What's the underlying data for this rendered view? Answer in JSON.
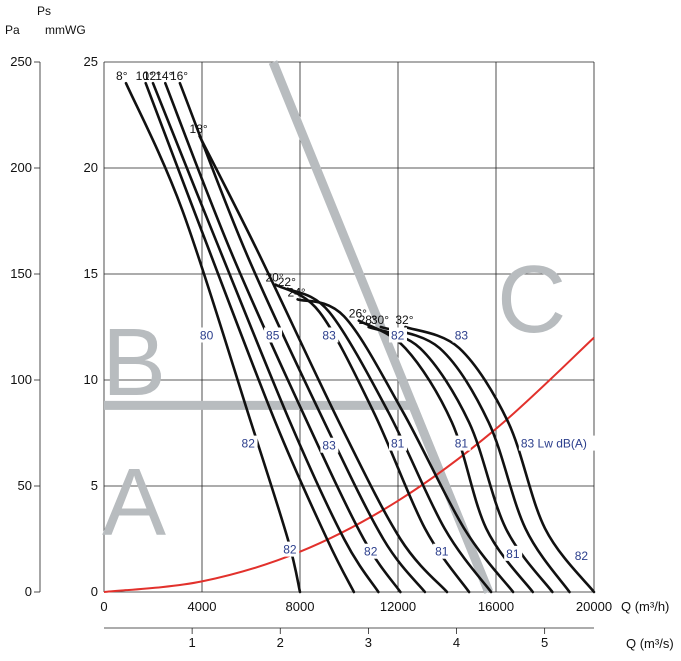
{
  "chart_data": {
    "type": "line",
    "title": "",
    "axes": {
      "x_flow_m3h": {
        "label": "Q (m³/h)",
        "range": [
          0,
          20000
        ],
        "ticks": [
          "0",
          "4000",
          "8000",
          "12000",
          "16000",
          "20000"
        ]
      },
      "x_flow_m3s": {
        "label": "Q (m³/s)",
        "range": [
          0,
          5.56
        ],
        "ticks": [
          "1",
          "2",
          "3",
          "4",
          "5"
        ]
      },
      "y_pa": {
        "label_top": "Ps",
        "label": "Pa",
        "range": [
          0,
          250
        ],
        "ticks": [
          "0",
          "50",
          "100",
          "150",
          "200",
          "250"
        ]
      },
      "y_mmwg": {
        "label": "mmWG",
        "range": [
          0,
          25
        ],
        "ticks": [
          "0",
          "5",
          "10",
          "15",
          "20",
          "25"
        ]
      }
    },
    "grid": true,
    "series": [
      {
        "name": "8°",
        "x": [
          900,
          3200,
          6000,
          7500,
          8000
        ],
        "y": [
          24,
          18,
          8,
          2.5,
          0
        ]
      },
      {
        "name": "10°",
        "x": [
          1700,
          4000,
          7000,
          9100,
          10200
        ],
        "y": [
          24,
          17,
          8,
          2.5,
          0
        ]
      },
      {
        "name": "12°",
        "x": [
          2000,
          4600,
          7600,
          9800,
          11200
        ],
        "y": [
          24,
          16.5,
          8,
          2.5,
          0
        ]
      },
      {
        "name": "14°",
        "x": [
          2500,
          5200,
          8300,
          10600,
          12100
        ],
        "y": [
          24,
          16,
          8,
          2.5,
          0
        ]
      },
      {
        "name": "16°",
        "x": [
          3100,
          5800,
          9000,
          11400,
          13100
        ],
        "y": [
          24,
          16,
          8,
          2.5,
          0
        ]
      },
      {
        "name": "18°",
        "x": [
          3900,
          6300,
          9600,
          12100,
          14000
        ],
        "y": [
          21.5,
          16,
          8,
          2.5,
          0
        ]
      },
      {
        "name": "20°",
        "x": [
          7000,
          8800,
          11000,
          13100,
          14900
        ],
        "y": [
          14.5,
          13.2,
          8.5,
          3,
          0
        ]
      },
      {
        "name": "22°",
        "x": [
          7500,
          9200,
          11600,
          13900,
          15800
        ],
        "y": [
          14.3,
          13.2,
          8.5,
          3,
          0
        ]
      },
      {
        "name": "24°",
        "x": [
          7900,
          9800,
          12200,
          14700,
          16700
        ],
        "y": [
          13.8,
          13,
          8.5,
          3,
          0
        ]
      },
      {
        "name": "26°",
        "x": [
          10400,
          12300,
          14200,
          15600,
          17500
        ],
        "y": [
          12.8,
          11.5,
          8,
          3,
          0
        ]
      },
      {
        "name": "28°",
        "x": [
          10800,
          12900,
          14900,
          16400,
          18300
        ],
        "y": [
          12.5,
          11.5,
          8,
          3,
          0
        ]
      },
      {
        "name": "30°",
        "x": [
          11300,
          13700,
          15700,
          17200,
          19000
        ],
        "y": [
          12.5,
          11.5,
          8,
          3,
          0
        ]
      },
      {
        "name": "32°",
        "x": [
          12300,
          14500,
          16500,
          18000,
          20000
        ],
        "y": [
          12.5,
          11.5,
          8,
          3,
          0
        ]
      }
    ],
    "system_curve": {
      "x": [
        0,
        4000,
        8000,
        12000,
        16000,
        20000
      ],
      "y": [
        0,
        0.5,
        1.9,
        4.3,
        7.7,
        12
      ]
    },
    "zone_labels": [
      "A",
      "B",
      "C"
    ],
    "zone_lines": [
      {
        "x": [
          0,
          12600,
          15700
        ],
        "y": [
          8.8,
          8.8,
          0
        ]
      },
      {
        "x": [
          6900,
          15700
        ],
        "y": [
          25,
          0
        ]
      }
    ],
    "sound_labels": [
      {
        "text": "80",
        "x": 4200,
        "y": 12.1
      },
      {
        "text": "85",
        "x": 6900,
        "y": 12.1
      },
      {
        "text": "83",
        "x": 9200,
        "y": 12.1
      },
      {
        "text": "82",
        "x": 12000,
        "y": 12.1
      },
      {
        "text": "83",
        "x": 14600,
        "y": 12.1
      },
      {
        "text": "82",
        "x": 5900,
        "y": 7.0
      },
      {
        "text": "83",
        "x": 9200,
        "y": 6.9
      },
      {
        "text": "81",
        "x": 12000,
        "y": 7.0
      },
      {
        "text": "81",
        "x": 14600,
        "y": 7.0
      },
      {
        "text": "83 Lw dB(A)",
        "x": 17300,
        "y": 7.0
      },
      {
        "text": "82",
        "x": 7600,
        "y": 2.0
      },
      {
        "text": "82",
        "x": 10900,
        "y": 1.9
      },
      {
        "text": "81",
        "x": 13800,
        "y": 1.9
      },
      {
        "text": "81",
        "x": 16700,
        "y": 1.8
      },
      {
        "text": "82",
        "x": 19500,
        "y": 1.7
      }
    ],
    "colors": {
      "curves": "#111111",
      "system_curve": "#e2312c",
      "zones": "#b8bcbf",
      "sound": "#2b3e8c"
    }
  }
}
